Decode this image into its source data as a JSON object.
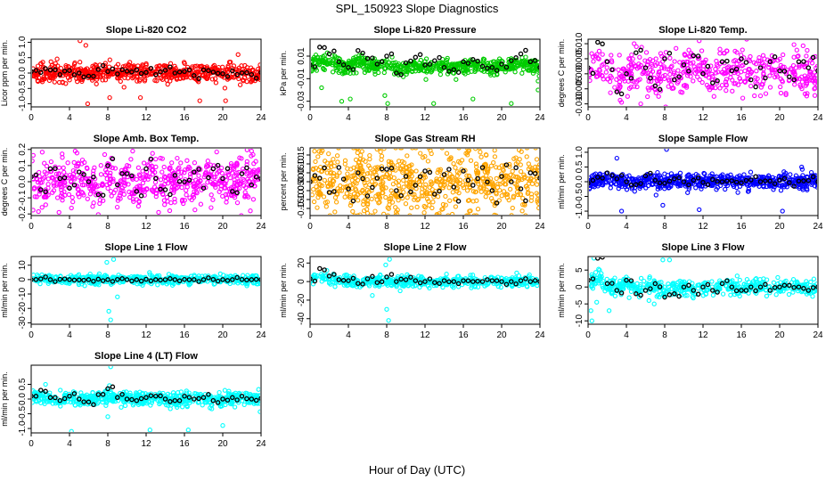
{
  "figure": {
    "title": "SPL_150923  Slope Diagnostics",
    "xlabel": "Hour of Day (UTC)"
  },
  "colors": {
    "red": "#ff0000",
    "green": "#00cc00",
    "magenta": "#ff00ff",
    "orange": "#ffa500",
    "blue": "#0000ff",
    "cyan": "#00ffff",
    "black": "#000000"
  },
  "chart_data": [
    {
      "type": "scatter",
      "title": "Slope Li-820 CO2",
      "ylabel": "Licor ppm per min.",
      "xlim": [
        0,
        24
      ],
      "xticks": [
        0,
        4,
        8,
        12,
        16,
        20,
        24
      ],
      "ylim": [
        -1.1,
        1.1
      ],
      "yticks": [
        -1.0,
        -0.5,
        0.0,
        0.5,
        1.0
      ],
      "yticklabels": [
        "-1.0",
        "-0.5",
        "0.0",
        "0.5",
        "1.0"
      ],
      "color": "red",
      "series": [
        {
          "name": "samples",
          "n": 600,
          "spread": 0.14,
          "outliers": [
            [
              5.1,
              1.05
            ],
            [
              5.7,
              0.9
            ],
            [
              5.9,
              -1.0
            ],
            [
              8.2,
              -0.8
            ],
            [
              11.4,
              -0.8
            ],
            [
              17.6,
              -0.9
            ],
            [
              20.3,
              -0.9
            ],
            [
              21.6,
              0.6
            ]
          ]
        },
        {
          "name": "hourly",
          "values": [
            0.05,
            0.02,
            0.1,
            -0.05,
            0.08,
            0.0,
            -0.1,
            0.12,
            0.05,
            -0.03,
            0.06,
            0.1,
            0.02,
            -0.05,
            0.09,
            0.0,
            0.05,
            -0.08,
            0.1,
            0.03,
            -0.02,
            0.07,
            0.0,
            -0.05,
            0.02
          ]
        }
      ]
    },
    {
      "type": "scatter",
      "title": "Slope Li-820 Pressure",
      "ylabel": "kPa per min.",
      "xlim": [
        0,
        24
      ],
      "xticks": [
        0,
        4,
        8,
        12,
        16,
        20,
        24
      ],
      "ylim": [
        -0.035,
        0.025
      ],
      "yticks": [
        -0.03,
        -0.01,
        0.01
      ],
      "yticklabels": [
        "-0.03",
        "-0.01",
        "0.01"
      ],
      "color": "green",
      "series": [
        {
          "name": "samples",
          "n": 600,
          "spread": 0.0035,
          "outliers": [
            [
              3.3,
              -0.03
            ],
            [
              4.2,
              -0.028
            ],
            [
              7.8,
              -0.025
            ],
            [
              8.1,
              -0.032
            ],
            [
              12.9,
              -0.032
            ],
            [
              17.0,
              -0.028
            ],
            [
              21.0,
              -0.032
            ],
            [
              23.8,
              -0.02
            ],
            [
              1.2,
              -0.018
            ]
          ]
        },
        {
          "name": "hourly",
          "values": [
            0.002,
            0.018,
            0.012,
            0.005,
            0.0,
            0.015,
            0.008,
            0.003,
            0.01,
            -0.005,
            0.004,
            0.009,
            0.002,
            0.006,
            0.0,
            -0.002,
            0.005,
            0.007,
            0.001,
            0.0,
            0.003,
            0.006,
            0.012,
            0.005,
            0.0
          ]
        }
      ]
    },
    {
      "type": "scatter",
      "title": "Slope Li-820 Temp.",
      "ylabel": "degrees C per min.",
      "xlim": [
        0,
        24
      ],
      "xticks": [
        0,
        4,
        8,
        12,
        16,
        20,
        24
      ],
      "ylim": [
        -0.011,
        0.0115
      ],
      "yticks": [
        -0.01,
        -0.005,
        0.0,
        0.005,
        0.01
      ],
      "yticklabels": [
        "-0.010",
        "-0.005",
        "0.000",
        "0.005",
        "0.010"
      ],
      "color": "magenta",
      "series": [
        {
          "name": "samples",
          "n": 500,
          "spread": 0.0035,
          "outliers": [
            [
              3.5,
              -0.0095
            ],
            [
              5.5,
              -0.01
            ],
            [
              8.1,
              -0.011
            ],
            [
              11.6,
              0.011
            ]
          ]
        },
        {
          "name": "hourly",
          "values": [
            0.002,
            0.0105,
            0.004,
            -0.006,
            0.0,
            0.007,
            0.002,
            -0.004,
            0.005,
            -0.002,
            0.003,
            0.006,
            0.0,
            -0.003,
            0.004,
            0.001,
            0.005,
            -0.002,
            0.002,
            0.004,
            0.001,
            -0.001,
            0.004,
            0.002,
            0.001
          ]
        }
      ]
    },
    {
      "type": "scatter",
      "title": "Slope Amb. Box Temp.",
      "ylabel": "degrees C per min.",
      "xlim": [
        0,
        24
      ],
      "xticks": [
        0,
        4,
        8,
        12,
        16,
        20,
        24
      ],
      "ylim": [
        -0.21,
        0.21
      ],
      "yticks": [
        -0.2,
        -0.1,
        0.0,
        0.1,
        0.2
      ],
      "yticklabels": [
        "-0.2",
        "-0.1",
        "0.0",
        "0.1",
        "0.2"
      ],
      "color": "magenta",
      "series": [
        {
          "name": "samples",
          "n": 600,
          "spread": 0.075,
          "outliers": [
            [
              2.9,
              -0.19
            ],
            [
              4.6,
              0.19
            ],
            [
              10.6,
              0.19
            ],
            [
              13.3,
              -0.19
            ],
            [
              23.0,
              0.19
            ]
          ]
        },
        {
          "name": "hourly",
          "values": [
            0.03,
            -0.05,
            0.08,
            0.02,
            -0.04,
            0.06,
            0.0,
            -0.08,
            0.1,
            -0.02,
            0.05,
            -0.06,
            0.08,
            0.02,
            -0.05,
            0.04,
            0.0,
            0.06,
            -0.04,
            0.08,
            0.02,
            -0.06,
            0.05,
            -0.02,
            0.02
          ]
        }
      ]
    },
    {
      "type": "scatter",
      "title": "Slope Gas Stream RH",
      "ylabel": "percent per min.",
      "xlim": [
        0,
        24
      ],
      "xticks": [
        0,
        4,
        8,
        12,
        16,
        20,
        24
      ],
      "ylim": [
        -0.19,
        0.19
      ],
      "yticks": [
        -0.15,
        -0.1,
        -0.05,
        0.0,
        0.05,
        0.1,
        0.15
      ],
      "yticklabels": [
        "-0.15",
        "-0.10",
        "-0.05",
        "0.00",
        "0.05",
        "0.10",
        "0.15"
      ],
      "color": "orange",
      "series": [
        {
          "name": "samples",
          "n": 700,
          "spread": 0.09,
          "outliers": []
        },
        {
          "name": "hourly",
          "values": [
            0.0,
            0.02,
            -0.06,
            0.08,
            -0.04,
            0.05,
            -0.08,
            0.02,
            0.07,
            -0.05,
            0.03,
            -0.02,
            0.06,
            -0.07,
            0.04,
            -0.03,
            0.06,
            -0.02,
            0.08,
            -0.05,
            0.03,
            0.0,
            -0.04,
            0.05,
            0.02
          ]
        }
      ]
    },
    {
      "type": "scatter",
      "title": "Slope Sample Flow",
      "ylabel": "ml/min per min.",
      "xlim": [
        0,
        24
      ],
      "xticks": [
        0,
        4,
        8,
        12,
        16,
        20,
        24
      ],
      "ylim": [
        -1.15,
        1.15
      ],
      "yticks": [
        -1.0,
        -0.5,
        0.0,
        0.5,
        1.0
      ],
      "yticklabels": [
        "-1.0",
        "-0.5",
        "0.0",
        "0.5",
        "1.0"
      ],
      "color": "blue",
      "series": [
        {
          "name": "samples",
          "n": 600,
          "spread": 0.13,
          "outliers": [
            [
              3.5,
              -1.0
            ],
            [
              7.8,
              -0.8
            ],
            [
              8.2,
              1.1
            ],
            [
              11.6,
              -0.95
            ],
            [
              20.3,
              -1.0
            ],
            [
              3.0,
              0.8
            ],
            [
              22.3,
              0.5
            ]
          ]
        },
        {
          "name": "hourly",
          "values": [
            -0.05,
            0.15,
            0.3,
            0.1,
            0.0,
            -0.1,
            0.2,
            0.05,
            -0.05,
            0.1,
            0.0,
            0.05,
            -0.02,
            0.08,
            0.0,
            0.03,
            -0.04,
            0.06,
            0.0,
            0.02,
            0.05,
            -0.03,
            0.02,
            0.04,
            0.0
          ]
        }
      ]
    },
    {
      "type": "scatter",
      "title": "Slope Line 1 Flow",
      "ylabel": "ml/min per min.",
      "xlim": [
        0,
        24
      ],
      "xticks": [
        0,
        4,
        8,
        12,
        16,
        20,
        24
      ],
      "ylim": [
        -31,
        16
      ],
      "yticks": [
        -30,
        -20,
        -10,
        0,
        10
      ],
      "yticklabels": [
        "-30",
        "-20",
        "-10",
        "0",
        "10"
      ],
      "color": "cyan",
      "series": [
        {
          "name": "samples",
          "n": 500,
          "spread": 1.6,
          "outliers": [
            [
              8.1,
              -22
            ],
            [
              8.3,
              -28
            ],
            [
              8.6,
              14
            ],
            [
              9.0,
              -12
            ],
            [
              7.9,
              12
            ]
          ]
        },
        {
          "name": "hourly",
          "values": [
            0.0,
            0.5,
            0.0,
            0.2,
            0.0,
            -0.2,
            0.0,
            0.3,
            0.0,
            0.1,
            0.0,
            0.0,
            0.2,
            0.0,
            -0.1,
            0.0,
            0.1,
            0.0,
            0.0,
            0.1,
            0.0,
            0.0,
            0.1,
            0.0,
            0.0
          ]
        }
      ]
    },
    {
      "type": "scatter",
      "title": "Slope Line 2 Flow",
      "ylabel": "ml/min per min.",
      "xlim": [
        0,
        24
      ],
      "xticks": [
        0,
        4,
        8,
        12,
        16,
        20,
        24
      ],
      "ylim": [
        -46,
        27
      ],
      "yticks": [
        -40,
        -20,
        0,
        20
      ],
      "yticklabels": [
        "-40",
        "-20",
        "0",
        "20"
      ],
      "color": "cyan",
      "series": [
        {
          "name": "samples",
          "n": 500,
          "spread": 3.0,
          "outliers": [
            [
              8.0,
              -30
            ],
            [
              8.2,
              -42
            ],
            [
              8.3,
              24
            ],
            [
              7.9,
              18
            ],
            [
              6.5,
              -15
            ],
            [
              9.4,
              -10
            ]
          ]
        },
        {
          "name": "hourly",
          "values": [
            3,
            14,
            6,
            2,
            1,
            -2,
            3,
            -1,
            5,
            0,
            2,
            1,
            0,
            -1,
            1,
            0,
            1,
            0,
            0,
            1,
            0,
            0,
            1,
            0,
            0
          ]
        }
      ]
    },
    {
      "type": "scatter",
      "title": "Slope Line 3 Flow",
      "ylabel": "ml/min per min.",
      "xlim": [
        0,
        24
      ],
      "xticks": [
        0,
        4,
        8,
        12,
        16,
        20,
        24
      ],
      "ylim": [
        -11,
        9
      ],
      "yticks": [
        -10,
        -5,
        0,
        5
      ],
      "yticklabels": [
        "-10",
        "-5",
        "0",
        "5"
      ],
      "color": "cyan",
      "series": [
        {
          "name": "samples",
          "n": 500,
          "spread": 1.2,
          "outliers": [
            [
              0.4,
              -10
            ],
            [
              0.3,
              -7
            ],
            [
              0.6,
              8.5
            ],
            [
              1.2,
              5
            ],
            [
              2.2,
              -7
            ],
            [
              7.8,
              8
            ],
            [
              8.5,
              8
            ],
            [
              6.9,
              -5
            ],
            [
              0.9,
              -4.5
            ]
          ]
        },
        {
          "name": "hourly",
          "values": [
            2,
            8.5,
            1,
            -1,
            2,
            -2,
            -1,
            1,
            -3,
            -2,
            0,
            -1,
            0,
            -1,
            1,
            0,
            -1,
            0,
            0,
            -1,
            0,
            0.5,
            0,
            -1,
            0
          ]
        }
      ]
    },
    {
      "type": "scatter",
      "title": "Slope Line 4 (LT) Flow",
      "ylabel": "ml/min per min.",
      "xlim": [
        0,
        24
      ],
      "xticks": [
        0,
        4,
        8,
        12,
        16,
        20,
        24
      ],
      "ylim": [
        -1.15,
        1.15
      ],
      "yticks": [
        -1.0,
        -0.5,
        0.0,
        0.5
      ],
      "yticklabels": [
        "-1.0",
        "-0.5",
        "0.0",
        "0.5"
      ],
      "color": "cyan",
      "series": [
        {
          "name": "samples",
          "n": 600,
          "spread": 0.12,
          "outliers": [
            [
              4.2,
              -1.1
            ],
            [
              8.0,
              -0.6
            ],
            [
              8.3,
              1.1
            ],
            [
              12.4,
              -1.05
            ],
            [
              16.4,
              -1.05
            ],
            [
              20.0,
              -0.9
            ],
            [
              1.5,
              0.5
            ]
          ]
        },
        {
          "name": "hourly",
          "values": [
            0.1,
            0.3,
            0.05,
            -0.05,
            0.1,
            0.0,
            -0.1,
            0.15,
            0.35,
            0.05,
            0.0,
            -0.05,
            0.05,
            0.1,
            0.0,
            -0.05,
            0.1,
            0.0,
            0.05,
            -0.05,
            0.0,
            0.05,
            0.1,
            0.0,
            0.02
          ]
        }
      ]
    }
  ]
}
